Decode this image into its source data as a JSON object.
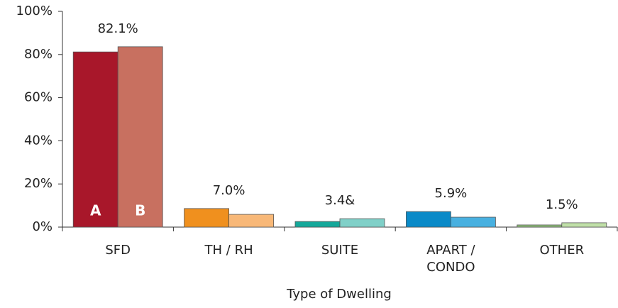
{
  "chart_data": {
    "type": "bar",
    "x_label": "Type of Dwelling",
    "categories": [
      "SFD",
      "TH / RH",
      "SUITE",
      "APART / CONDO",
      "OTHER"
    ],
    "series": [
      {
        "name": "A",
        "color": [
          "#a8172a",
          "#f0901e",
          "#14a89a",
          "#0a8ac8",
          "#8fbf7a"
        ],
        "values": [
          81.2,
          8.6,
          2.6,
          7.2,
          1.0
        ]
      },
      {
        "name": "B",
        "color": [
          "#c87060",
          "#f8b878",
          "#80d0c8",
          "#48b0e0",
          "#c0e0a8"
        ],
        "values": [
          83.6,
          5.9,
          3.9,
          4.6,
          2.0
        ]
      }
    ],
    "group_labels": [
      "82.1%",
      "7.0%",
      "3.4&",
      "5.9%",
      "1.5%"
    ],
    "ylim": [
      0,
      100
    ],
    "yticks": [
      {
        "value": 0,
        "label": "0%"
      },
      {
        "value": 20,
        "label": "20%"
      },
      {
        "value": 40,
        "label": "40%"
      },
      {
        "value": 60,
        "label": "60%"
      },
      {
        "value": 80,
        "label": "80%"
      },
      {
        "value": 100,
        "label": "100%"
      }
    ]
  }
}
